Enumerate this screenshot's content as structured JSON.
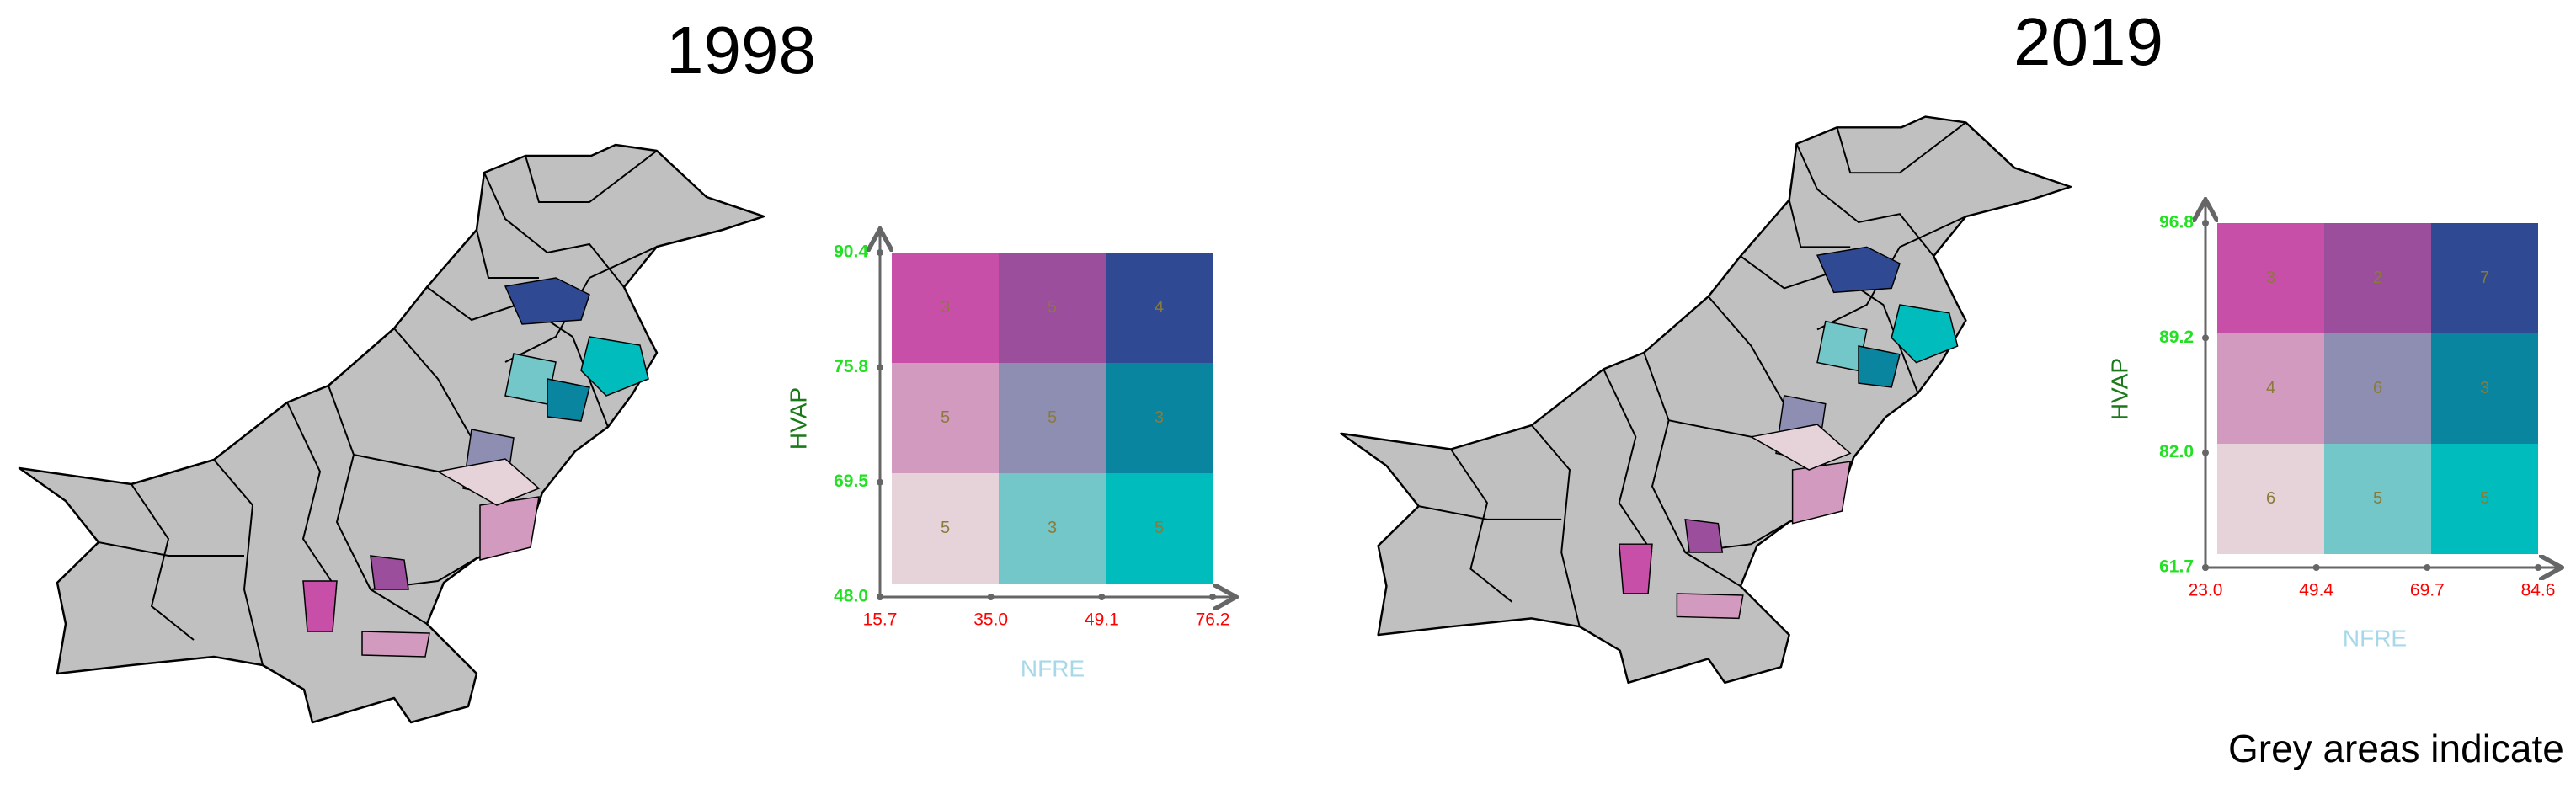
{
  "panels": [
    {
      "title": "1998",
      "legend": {
        "x_label": "NFRE",
        "y_label": "HVAP",
        "xticks": [
          {
            "value": 15.7,
            "label": "15.7"
          },
          {
            "value": 35.0,
            "label": "35.0"
          },
          {
            "value": 49.1,
            "label": "49.1"
          },
          {
            "value": 76.2,
            "label": "76.2"
          }
        ],
        "yticks": [
          {
            "value": 48.0,
            "label": "48.0"
          },
          {
            "value": 69.5,
            "label": "69.5"
          },
          {
            "value": 75.8,
            "label": "75.8"
          },
          {
            "value": 90.4,
            "label": "90.4"
          }
        ],
        "counts": [
          [
            3,
            5,
            4
          ],
          [
            5,
            5,
            3
          ],
          [
            5,
            3,
            5
          ]
        ],
        "colors": [
          [
            "#c84fa7",
            "#9a4e9b",
            "#2f4a93"
          ],
          [
            "#d39abf",
            "#8e8eb2",
            "#0a85a0"
          ],
          [
            "#e6d3da",
            "#74c7c8",
            "#00bcbc"
          ]
        ]
      }
    },
    {
      "title": "2019",
      "legend": {
        "x_label": "NFRE",
        "y_label": "HVAP",
        "xticks": [
          {
            "value": 23.0,
            "label": "23.0"
          },
          {
            "value": 49.4,
            "label": "49.4"
          },
          {
            "value": 69.7,
            "label": "69.7"
          },
          {
            "value": 84.6,
            "label": "84.6"
          }
        ],
        "yticks": [
          {
            "value": 61.7,
            "label": "61.7"
          },
          {
            "value": 82.0,
            "label": "82.0"
          },
          {
            "value": 89.2,
            "label": "89.2"
          },
          {
            "value": 96.8,
            "label": "96.8"
          }
        ],
        "counts": [
          [
            3,
            2,
            7
          ],
          [
            4,
            6,
            3
          ],
          [
            6,
            5,
            5
          ]
        ],
        "colors": [
          [
            "#c84fa7",
            "#9a4e9b",
            "#2f4a93"
          ],
          [
            "#d39abf",
            "#8e8eb2",
            "#0a85a0"
          ],
          [
            "#e6d3da",
            "#74c7c8",
            "#00bcbc"
          ]
        ]
      }
    }
  ],
  "note": "Grey areas indicate no data"
}
